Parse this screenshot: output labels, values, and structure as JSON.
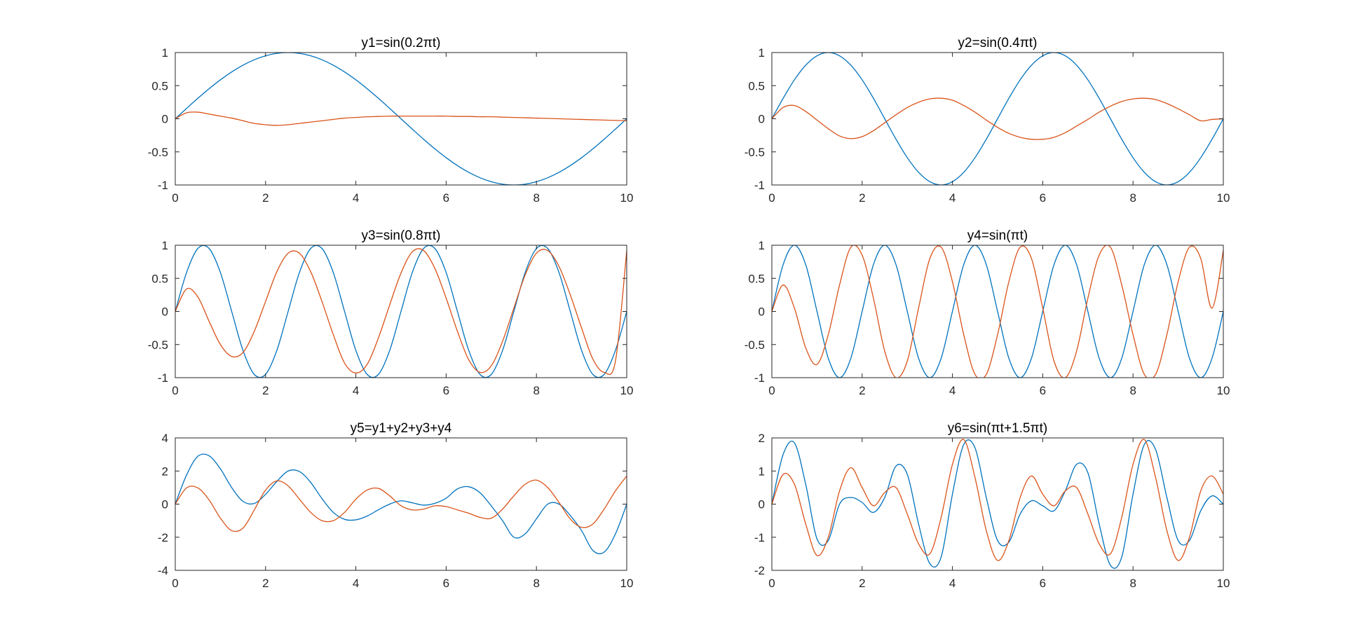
{
  "figure": {
    "background": "#ffffff",
    "axes_color": "#262626",
    "series_colors": [
      "#0072BD",
      "#D95319"
    ]
  },
  "chart_data": [
    {
      "type": "line",
      "title": "y1=sin(0.2πt)",
      "xlabel": "",
      "ylabel": "",
      "xlim": [
        0,
        10
      ],
      "ylim": [
        -1,
        1
      ],
      "xticks": [
        0,
        2,
        4,
        6,
        8,
        10
      ],
      "yticks": [
        1,
        0.5,
        0,
        -0.5,
        -1
      ],
      "x": [
        0,
        0.25,
        0.5,
        0.75,
        1,
        1.25,
        1.5,
        1.75,
        2,
        2.25,
        2.5,
        2.75,
        3,
        3.25,
        3.5,
        3.75,
        4,
        4.25,
        4.5,
        4.75,
        5,
        5.25,
        5.5,
        5.75,
        6,
        6.25,
        6.5,
        6.75,
        7,
        7.25,
        7.5,
        7.75,
        8,
        8.25,
        8.5,
        8.75,
        9,
        9.25,
        9.5,
        9.75,
        10
      ],
      "series": [
        {
          "values": [
            0,
            0.156,
            0.309,
            0.454,
            0.588,
            0.707,
            0.809,
            0.891,
            0.951,
            0.988,
            1,
            0.988,
            0.951,
            0.891,
            0.809,
            0.707,
            0.588,
            0.454,
            0.309,
            0.156,
            0,
            -0.156,
            -0.309,
            -0.454,
            -0.588,
            -0.707,
            -0.809,
            -0.891,
            -0.951,
            -0.988,
            -1,
            -0.988,
            -0.951,
            -0.891,
            -0.809,
            -0.707,
            -0.588,
            -0.454,
            -0.309,
            -0.156,
            0
          ]
        },
        {
          "values": [
            0,
            0.09,
            0.1,
            0.07,
            0.04,
            0.01,
            -0.03,
            -0.07,
            -0.09,
            -0.1,
            -0.09,
            -0.07,
            -0.05,
            -0.03,
            -0.01,
            0.01,
            0.02,
            0.03,
            0.035,
            0.04,
            0.04,
            0.04,
            0.04,
            0.04,
            0.04,
            0.035,
            0.035,
            0.03,
            0.03,
            0.025,
            0.02,
            0.015,
            0.01,
            0.005,
            0,
            -0.005,
            -0.01,
            -0.015,
            -0.02,
            -0.025,
            -0.03
          ]
        }
      ]
    },
    {
      "type": "line",
      "title": "y2=sin(0.4πt)",
      "xlabel": "",
      "ylabel": "",
      "xlim": [
        0,
        10
      ],
      "ylim": [
        -1,
        1
      ],
      "xticks": [
        0,
        2,
        4,
        6,
        8,
        10
      ],
      "yticks": [
        1,
        0.5,
        0,
        -0.5,
        -1
      ],
      "x": [
        0,
        0.25,
        0.5,
        0.75,
        1,
        1.25,
        1.5,
        1.75,
        2,
        2.25,
        2.5,
        2.75,
        3,
        3.25,
        3.5,
        3.75,
        4,
        4.25,
        4.5,
        4.75,
        5,
        5.25,
        5.5,
        5.75,
        6,
        6.25,
        6.5,
        6.75,
        7,
        7.25,
        7.5,
        7.75,
        8,
        8.25,
        8.5,
        8.75,
        9,
        9.25,
        9.5,
        9.75,
        10
      ],
      "series": [
        {
          "values": [
            0,
            0.309,
            0.588,
            0.809,
            0.951,
            1,
            0.951,
            0.809,
            0.588,
            0.309,
            0,
            -0.309,
            -0.588,
            -0.809,
            -0.951,
            -1,
            -0.951,
            -0.809,
            -0.588,
            -0.309,
            0,
            0.309,
            0.588,
            0.809,
            0.951,
            1,
            0.951,
            0.809,
            0.588,
            0.309,
            0,
            -0.309,
            -0.588,
            -0.809,
            -0.951,
            -1,
            -0.951,
            -0.809,
            -0.588,
            -0.309,
            0
          ]
        },
        {
          "values": [
            0,
            0.17,
            0.2,
            0.11,
            -0.02,
            -0.15,
            -0.26,
            -0.3,
            -0.27,
            -0.18,
            -0.06,
            0.06,
            0.17,
            0.25,
            0.3,
            0.31,
            0.28,
            0.2,
            0.1,
            -0.02,
            -0.13,
            -0.22,
            -0.28,
            -0.31,
            -0.31,
            -0.28,
            -0.21,
            -0.11,
            -0.01,
            0.1,
            0.19,
            0.26,
            0.3,
            0.31,
            0.29,
            0.23,
            0.15,
            0.06,
            -0.03,
            -0.01,
            0
          ]
        }
      ]
    },
    {
      "type": "line",
      "title": "y3=sin(0.8πt)",
      "xlabel": "",
      "ylabel": "",
      "xlim": [
        0,
        10
      ],
      "ylim": [
        -1,
        1
      ],
      "xticks": [
        0,
        2,
        4,
        6,
        8,
        10
      ],
      "yticks": [
        1,
        0.5,
        0,
        -0.5,
        -1
      ],
      "x": [
        0,
        0.25,
        0.5,
        0.75,
        1,
        1.25,
        1.5,
        1.75,
        2,
        2.25,
        2.5,
        2.75,
        3,
        3.25,
        3.5,
        3.75,
        4,
        4.25,
        4.5,
        4.75,
        5,
        5.25,
        5.5,
        5.75,
        6,
        6.25,
        6.5,
        6.75,
        7,
        7.25,
        7.5,
        7.75,
        8,
        8.25,
        8.5,
        8.75,
        9,
        9.25,
        9.5,
        9.75,
        10
      ],
      "series": [
        {
          "values": [
            0,
            0.588,
            0.951,
            0.951,
            0.588,
            0,
            -0.588,
            -0.951,
            -0.951,
            -0.588,
            0,
            0.588,
            0.951,
            0.951,
            0.588,
            0,
            -0.588,
            -0.951,
            -0.951,
            -0.588,
            0,
            0.588,
            0.951,
            0.951,
            0.588,
            0,
            -0.588,
            -0.951,
            -0.951,
            -0.588,
            0,
            0.588,
            0.951,
            0.951,
            0.588,
            0,
            -0.588,
            -0.951,
            -0.951,
            -0.588,
            0
          ]
        },
        {
          "values": [
            0,
            0.34,
            0.22,
            -0.15,
            -0.5,
            -0.68,
            -0.62,
            -0.3,
            0.15,
            0.6,
            0.88,
            0.88,
            0.6,
            0.15,
            -0.35,
            -0.78,
            -0.93,
            -0.8,
            -0.4,
            0.1,
            0.58,
            0.9,
            0.92,
            0.65,
            0.2,
            -0.3,
            -0.73,
            -0.92,
            -0.82,
            -0.45,
            0.05,
            0.55,
            0.88,
            0.92,
            0.68,
            0.25,
            -0.25,
            -0.72,
            -0.92,
            -0.75,
            0.92
          ]
        }
      ]
    },
    {
      "type": "line",
      "title": "y4=sin(πt)",
      "xlabel": "",
      "ylabel": "",
      "xlim": [
        0,
        10
      ],
      "ylim": [
        -1,
        1
      ],
      "xticks": [
        0,
        2,
        4,
        6,
        8,
        10
      ],
      "yticks": [
        1,
        0.5,
        0,
        -0.5,
        -1
      ],
      "x": [
        0,
        0.25,
        0.5,
        0.75,
        1,
        1.25,
        1.5,
        1.75,
        2,
        2.25,
        2.5,
        2.75,
        3,
        3.25,
        3.5,
        3.75,
        4,
        4.25,
        4.5,
        4.75,
        5,
        5.25,
        5.5,
        5.75,
        6,
        6.25,
        6.5,
        6.75,
        7,
        7.25,
        7.5,
        7.75,
        8,
        8.25,
        8.5,
        8.75,
        9,
        9.25,
        9.5,
        9.75,
        10
      ],
      "series": [
        {
          "values": [
            0,
            0.707,
            1,
            0.707,
            0,
            -0.707,
            -1,
            -0.707,
            0,
            0.707,
            1,
            0.707,
            0,
            -0.707,
            -1,
            -0.707,
            0,
            0.707,
            1,
            0.707,
            0,
            -0.707,
            -1,
            -0.707,
            0,
            0.707,
            1,
            0.707,
            0,
            -0.707,
            -1,
            -0.707,
            0,
            0.707,
            1,
            0.707,
            0,
            -0.707,
            -1,
            -0.707,
            0
          ]
        },
        {
          "values": [
            0,
            0.4,
            0.05,
            -0.55,
            -0.8,
            -0.35,
            0.4,
            0.97,
            0.85,
            0.2,
            -0.6,
            -1,
            -0.75,
            0.05,
            0.8,
            0.97,
            0.45,
            -0.35,
            -0.95,
            -0.95,
            -0.35,
            0.45,
            0.97,
            0.8,
            0.05,
            -0.75,
            -1,
            -0.6,
            0.2,
            0.85,
            0.97,
            0.4,
            -0.35,
            -0.95,
            -0.95,
            -0.35,
            0.45,
            0.97,
            0.8,
            0.05,
            0.92
          ]
        }
      ]
    },
    {
      "type": "line",
      "title": "y5=y1+y2+y3+y4",
      "xlabel": "",
      "ylabel": "",
      "xlim": [
        0,
        10
      ],
      "ylim": [
        -4,
        4
      ],
      "xticks": [
        0,
        2,
        4,
        6,
        8,
        10
      ],
      "yticks": [
        4,
        2,
        0,
        -2,
        -4
      ],
      "x": [
        0,
        0.25,
        0.5,
        0.75,
        1,
        1.25,
        1.5,
        1.75,
        2,
        2.25,
        2.5,
        2.75,
        3,
        3.25,
        3.5,
        3.75,
        4,
        4.25,
        4.5,
        4.75,
        5,
        5.25,
        5.5,
        5.75,
        6,
        6.25,
        6.5,
        6.75,
        7,
        7.25,
        7.5,
        7.75,
        8,
        8.25,
        8.5,
        8.75,
        9,
        9.25,
        9.5,
        9.75,
        10
      ],
      "series": [
        {
          "values": [
            0,
            1.76,
            2.89,
            2.92,
            2.13,
            1.0,
            0.17,
            0.04,
            0.59,
            1.37,
            2.0,
            1.97,
            1.31,
            0.33,
            -0.5,
            -0.92,
            -0.95,
            -0.72,
            -0.34,
            0.0,
            0.2,
            0.08,
            -0.06,
            0.05,
            0.36,
            0.92,
            1.05,
            0.69,
            -0.11,
            -1.0,
            -2.0,
            -1.8,
            -0.89,
            0.0,
            0.0,
            -0.69,
            -1.6,
            -2.8,
            -2.9,
            -1.8,
            0
          ]
        },
        {
          "values": [
            0,
            0.98,
            0.98,
            0.25,
            -0.85,
            -1.6,
            -1.45,
            -0.35,
            0.85,
            1.4,
            1.1,
            0.3,
            -0.5,
            -1.0,
            -1.0,
            -0.5,
            0.3,
            0.85,
            0.95,
            0.5,
            -0.1,
            -0.35,
            -0.3,
            -0.1,
            -0.15,
            -0.35,
            -0.55,
            -0.8,
            -0.85,
            -0.3,
            0.5,
            1.2,
            1.45,
            1.0,
            0.1,
            -0.9,
            -1.4,
            -1.2,
            -0.3,
            0.8,
            1.7
          ]
        }
      ]
    },
    {
      "type": "line",
      "title": "y6=sin(πt+1.5πt)",
      "xlabel": "",
      "ylabel": "",
      "xlim": [
        0,
        10
      ],
      "ylim": [
        -2,
        2
      ],
      "xticks": [
        0,
        2,
        4,
        6,
        8,
        10
      ],
      "yticks": [
        2,
        1,
        0,
        -1,
        -2
      ],
      "x": [
        0,
        0.25,
        0.5,
        0.75,
        1,
        1.25,
        1.5,
        1.75,
        2,
        2.25,
        2.5,
        2.75,
        3,
        3.25,
        3.5,
        3.75,
        4,
        4.25,
        4.5,
        4.75,
        5,
        5.25,
        5.5,
        5.75,
        6,
        6.25,
        6.5,
        6.75,
        7,
        7.25,
        7.5,
        7.75,
        8,
        8.25,
        8.5,
        8.75,
        9,
        9.25,
        9.5,
        9.75,
        10
      ],
      "series": [
        {
          "values": [
            0,
            1.5,
            1.85,
            0.6,
            -1.05,
            -1.1,
            0.0,
            0.2,
            0.05,
            -0.25,
            0.2,
            1.15,
            0.9,
            -0.6,
            -1.8,
            -1.6,
            0.3,
            1.8,
            1.7,
            0.2,
            -1.1,
            -1.15,
            -0.3,
            0.1,
            -0.05,
            -0.2,
            0.4,
            1.2,
            0.95,
            -0.6,
            -1.85,
            -1.6,
            0.3,
            1.8,
            1.65,
            0.2,
            -1.1,
            -1.1,
            -0.2,
            0.25,
            0
          ]
        },
        {
          "values": [
            0,
            0.9,
            0.6,
            -0.6,
            -1.55,
            -1.0,
            0.4,
            1.1,
            0.5,
            -0.05,
            0.35,
            0.5,
            -0.3,
            -1.2,
            -1.5,
            -0.4,
            1.2,
            1.95,
            0.8,
            -0.8,
            -1.7,
            -1.1,
            0.2,
            0.85,
            0.3,
            -0.05,
            0.4,
            0.5,
            -0.3,
            -1.2,
            -1.5,
            -0.4,
            1.2,
            1.95,
            0.8,
            -0.8,
            -1.7,
            -1.0,
            0.4,
            0.85,
            0.3
          ]
        }
      ]
    }
  ]
}
